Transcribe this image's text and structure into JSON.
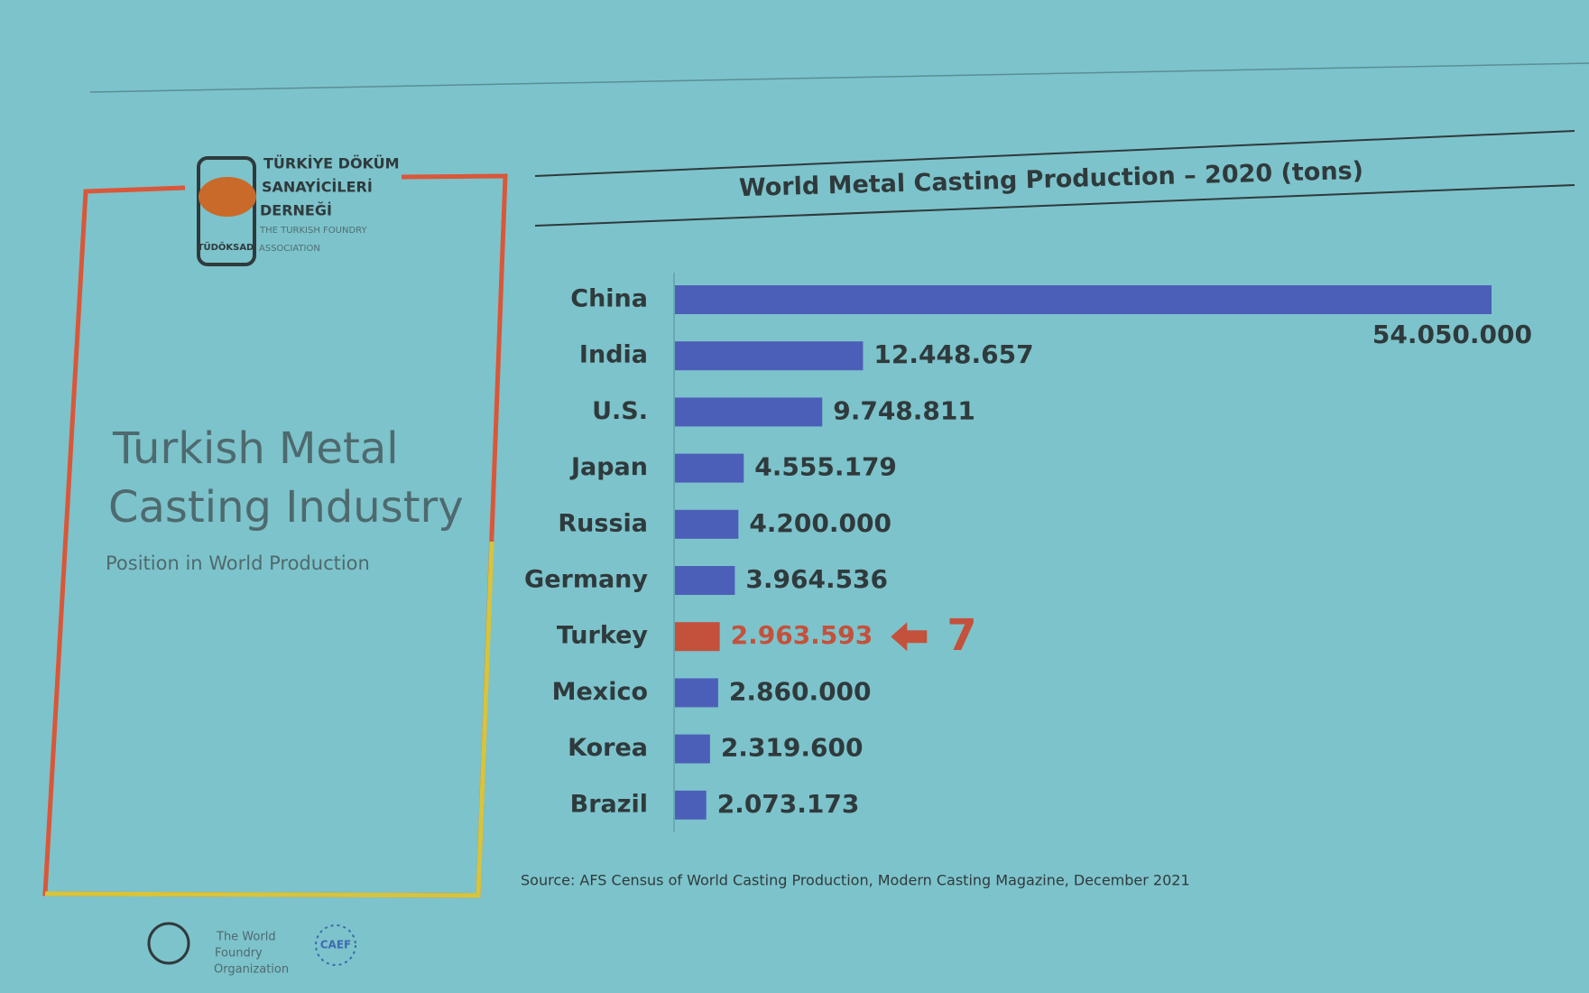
{
  "slide": {
    "logo_name": [
      "TÜRKİYE DÖKÜM",
      "SANAYİCİLERİ",
      "DERNEĞİ"
    ],
    "logo_sub": [
      "THE TURKISH FOUNDRY",
      "ASSOCIATION"
    ],
    "logo_badge": "TÜDÖKSAD",
    "heading": [
      "Turkish Metal",
      "Casting Industry"
    ],
    "subheading": "Position in World Production",
    "wfo": [
      "The World",
      "Foundry",
      "Organization"
    ],
    "caef": "CAEF"
  },
  "chart_data": {
    "type": "hbar",
    "title": "World Metal Casting Production – 2020 (tons)",
    "categories": [
      "China",
      "India",
      "U.S.",
      "Japan",
      "Russia",
      "Germany",
      "Turkey",
      "Mexico",
      "Korea",
      "Brazil"
    ],
    "values": [
      54050000,
      12448657,
      9748811,
      4555179,
      4200000,
      3964536,
      2963593,
      2860000,
      2319600,
      2073173
    ],
    "value_labels": [
      "54.050.000",
      "12.448.657",
      "9.748.811",
      "4.555.179",
      "4.200.000",
      "3.964.536",
      "2.963.593",
      "2.860.000",
      "2.319.600",
      "2.073.173"
    ],
    "colors": [
      "#4c5fb8",
      "#4c5fb8",
      "#4c5fb8",
      "#4c5fb8",
      "#4c5fb8",
      "#4c5fb8",
      "#c4513b",
      "#4c5fb8",
      "#4c5fb8",
      "#4c5fb8"
    ],
    "annotation": "7",
    "annotation_color": "#c4513b",
    "source": "Source: AFS Census of World Casting Production, Modern Casting Magazine, December 2021"
  }
}
